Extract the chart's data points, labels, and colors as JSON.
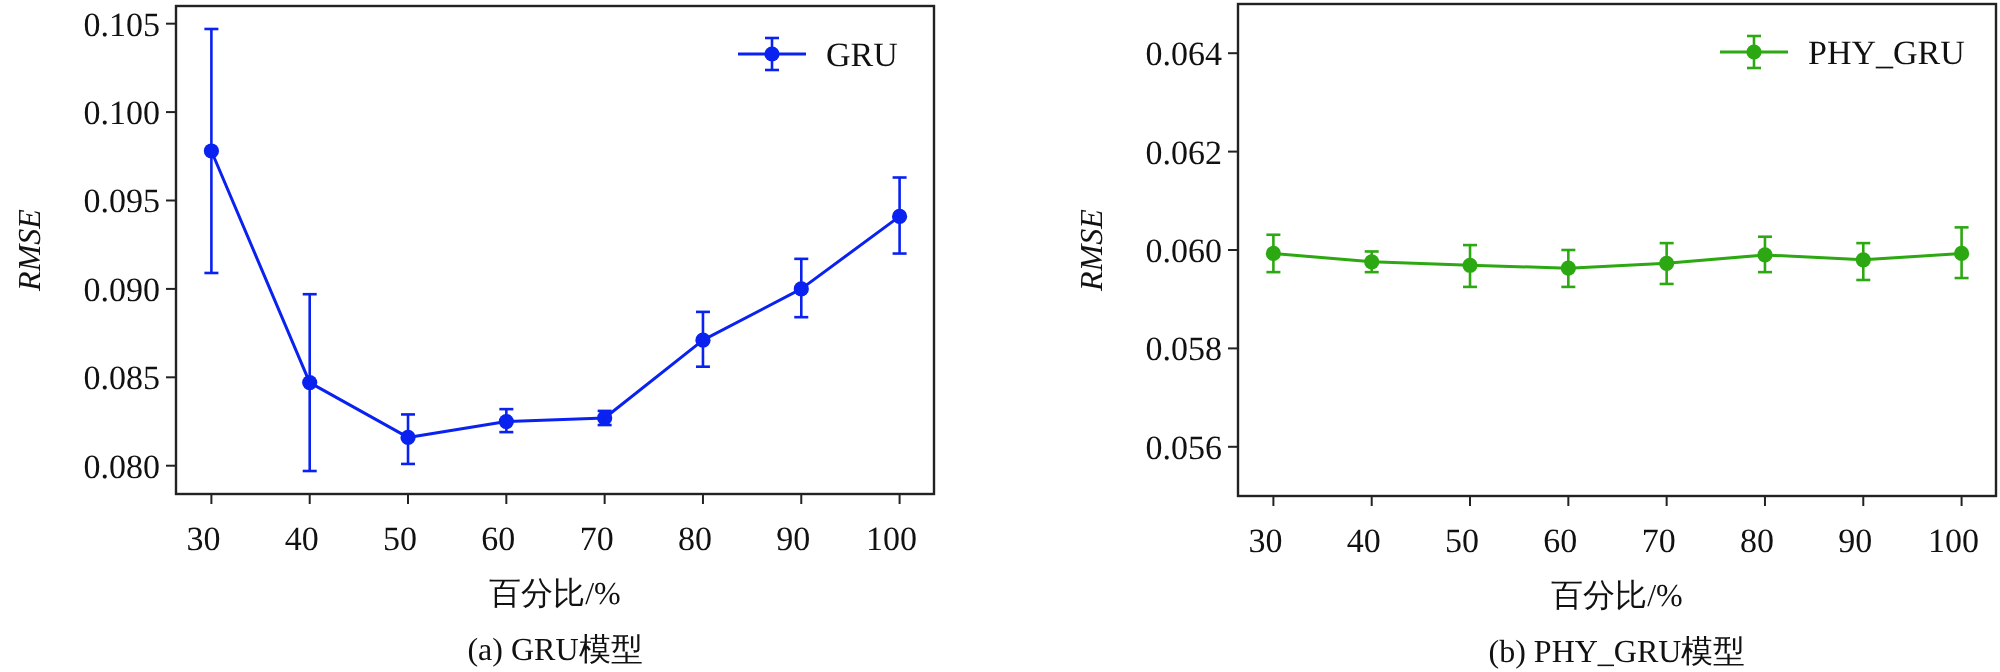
{
  "chart_data": [
    {
      "type": "line",
      "xlabel": "百分比/%",
      "ylabel": "RMSE",
      "annotations": [
        "(a) GRU模型"
      ],
      "x": [
        30,
        40,
        50,
        60,
        70,
        80,
        90,
        100
      ],
      "series": [
        {
          "name": "GRU",
          "color": "#0a22f0",
          "values": [
            0.0978,
            0.0847,
            0.0816,
            0.0825,
            0.0827,
            0.0871,
            0.09,
            0.0941
          ],
          "errors": [
            [
              0.0909,
              0.1047
            ],
            [
              0.0797,
              0.0897
            ],
            [
              0.0801,
              0.0829
            ],
            [
              0.0819,
              0.0832
            ],
            [
              0.0823,
              0.0831
            ],
            [
              0.0856,
              0.0887
            ],
            [
              0.0884,
              0.0917
            ],
            [
              0.092,
              0.0963
            ]
          ]
        }
      ],
      "xlim": [
        26.4,
        103.5
      ],
      "xticks": [
        30,
        40,
        50,
        60,
        70,
        80,
        90,
        100
      ],
      "ylim": [
        0.0784,
        0.106
      ],
      "yticks": [
        {
          "value": 0.08,
          "label": "0.080"
        },
        0.085,
        {
          "value": 0.09,
          "label": "0.090"
        },
        0.095,
        {
          "value": 0.1,
          "label": "0.100"
        },
        0.105
      ],
      "legend": "top right",
      "marker": "circle",
      "line_style": "solid",
      "grid": false
    },
    {
      "type": "line",
      "xlabel": "百分比/%",
      "ylabel": "RMSE",
      "annotations": [
        "(b) PHY_GRU模型"
      ],
      "x": [
        30,
        40,
        50,
        60,
        70,
        80,
        90,
        100
      ],
      "series": [
        {
          "name": "PHY_GRU",
          "color": "#2ca812",
          "values": [
            0.05993,
            0.05976,
            0.05969,
            0.05963,
            0.05973,
            0.0599,
            0.0598,
            0.05993
          ],
          "errors": [
            [
              0.05955,
              0.06031
            ],
            [
              0.05955,
              0.05997
            ],
            [
              0.05925,
              0.0601
            ],
            [
              0.05925,
              0.06
            ],
            [
              0.05931,
              0.06014
            ],
            [
              0.05955,
              0.06027
            ],
            [
              0.05939,
              0.06014
            ],
            [
              0.05943,
              0.06046
            ]
          ]
        }
      ],
      "xlim": [
        26.4,
        103.5
      ],
      "xticks": [
        30,
        40,
        50,
        60,
        70,
        80,
        90,
        100
      ],
      "ylim": [
        0.055,
        0.065
      ],
      "yticks": [
        0.056,
        0.058,
        {
          "value": 0.06,
          "label": "0.060"
        },
        0.062,
        0.064
      ],
      "legend": "top right",
      "marker": "circle",
      "line_style": "solid",
      "grid": false
    }
  ]
}
